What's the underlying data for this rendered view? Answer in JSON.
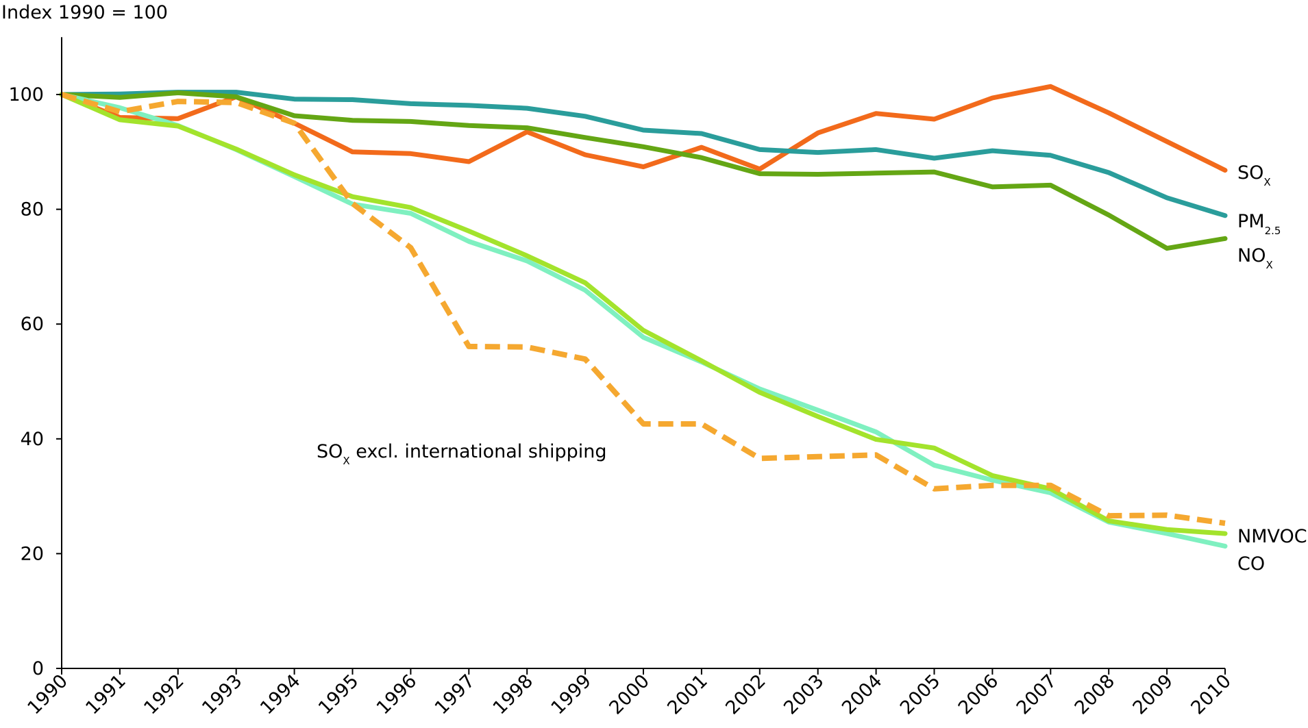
{
  "chart_data": {
    "type": "line",
    "ylabel": "Index 1990 = 100",
    "ylim": [
      0,
      110
    ],
    "yticks": [
      0,
      20,
      40,
      60,
      80,
      100
    ],
    "x": [
      "1990",
      "1991",
      "1992",
      "1993",
      "1994",
      "1995",
      "1996",
      "1997",
      "1998",
      "1999",
      "2000",
      "2001",
      "2002",
      "2003",
      "2004",
      "2005",
      "2006",
      "2007",
      "2008",
      "2009",
      "2010"
    ],
    "series": [
      {
        "name": "SOX",
        "label_main": "SO",
        "label_sub": "X",
        "color": "#f26a1b",
        "dashed": false,
        "values": [
          100,
          96,
          95.8,
          99.6,
          95,
          90,
          89.7,
          88.3,
          93.5,
          89.5,
          87.4,
          90.8,
          87,
          93.3,
          96.7,
          95.7,
          99.4,
          101.4,
          96.8,
          91.8,
          86.8
        ]
      },
      {
        "name": "PM2.5",
        "label_main": "PM",
        "label_sub": "2.5",
        "color": "#2a9d9b",
        "dashed": false,
        "values": [
          100,
          100.1,
          100.4,
          100.4,
          99.2,
          99.1,
          98.4,
          98.1,
          97.6,
          96.2,
          93.8,
          93.2,
          90.4,
          89.9,
          90.4,
          88.9,
          90.2,
          89.4,
          86.4,
          82,
          78.9
        ]
      },
      {
        "name": "NOX",
        "label_main": "NO",
        "label_sub": "X",
        "color": "#64a614",
        "dashed": false,
        "values": [
          100,
          99.5,
          100.3,
          99.6,
          96.3,
          95.5,
          95.3,
          94.6,
          94.2,
          92.5,
          90.9,
          89,
          86.2,
          86.1,
          86.3,
          86.5,
          83.9,
          84.2,
          79,
          73.2,
          74.9
        ]
      },
      {
        "name": "CO",
        "label_main": "CO",
        "label_sub": "",
        "color": "#7ff0c0",
        "dashed": false,
        "values": [
          100,
          97.7,
          94.6,
          90.4,
          85.7,
          80.9,
          79.3,
          74.4,
          71,
          65.9,
          57.7,
          53.4,
          48.7,
          45,
          41.2,
          35.4,
          32.8,
          30.6,
          25.5,
          23.5,
          21.3
        ]
      },
      {
        "name": "NMVOC",
        "label_main": "NMVOC",
        "label_sub": "",
        "color": "#a3e32c",
        "dashed": false,
        "values": [
          100,
          95.6,
          94.5,
          90.5,
          86,
          82.2,
          80.3,
          76.2,
          71.9,
          67.2,
          58.9,
          53.6,
          48.1,
          43.9,
          39.9,
          38.4,
          33.6,
          31.3,
          25.7,
          24.2,
          23.5
        ]
      },
      {
        "name": "SOX excl. international shipping",
        "label_main": "SO",
        "label_sub": "X",
        "label_rest": " excl. international shipping",
        "color": "#f5a830",
        "dashed": true,
        "values": [
          100,
          97,
          98.8,
          98.6,
          95,
          81,
          73.3,
          56.1,
          56,
          53.9,
          42.6,
          42.6,
          36.6,
          36.9,
          37.2,
          31.3,
          31.9,
          31.9,
          26.6,
          26.7,
          25.3
        ]
      }
    ]
  }
}
